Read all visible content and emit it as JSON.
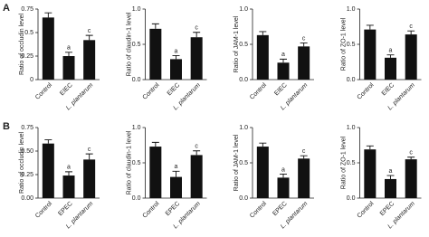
{
  "panel_labels": [
    "A",
    "B"
  ],
  "chart_data": [
    {
      "type": "bar",
      "ylabel": "Ratio of occludin level",
      "categories": [
        "Control",
        "EIEC",
        "L. plantarum"
      ],
      "values": [
        0.66,
        0.25,
        0.42
      ],
      "errors": [
        0.05,
        0.04,
        0.05
      ],
      "annotations": [
        null,
        "a",
        "c"
      ],
      "ylim": [
        0,
        0.75
      ],
      "yticks": [
        0,
        0.25,
        0.5,
        0.75
      ],
      "color": "#111111"
    },
    {
      "type": "bar",
      "ylabel": "Ratio of claudin-1 level",
      "categories": [
        "Control",
        "EIEC",
        "L. plantarum"
      ],
      "values": [
        0.72,
        0.29,
        0.6
      ],
      "errors": [
        0.07,
        0.05,
        0.07
      ],
      "annotations": [
        null,
        "a",
        "c"
      ],
      "ylim": [
        0,
        1
      ],
      "yticks": [
        {
          "value": 0,
          "label": "0.0"
        },
        0.5,
        {
          "value": 1,
          "label": "1.0"
        }
      ],
      "color": "#111111"
    },
    {
      "type": "bar",
      "ylabel": "Ratio of JAM-1 level",
      "categories": [
        "Control",
        "EIEC",
        "L. plantarum"
      ],
      "values": [
        0.63,
        0.24,
        0.47
      ],
      "errors": [
        0.05,
        0.05,
        0.05
      ],
      "annotations": [
        null,
        "a",
        "c"
      ],
      "ylim": [
        0,
        1
      ],
      "yticks": [
        {
          "value": 0,
          "label": "0.0"
        },
        0.5,
        {
          "value": 1,
          "label": "1.0"
        }
      ],
      "color": "#111111"
    },
    {
      "type": "bar",
      "ylabel": "Ratio of ZO-1 level",
      "categories": [
        "Control",
        "EIEC",
        "L. plantarum"
      ],
      "values": [
        0.71,
        0.31,
        0.64
      ],
      "errors": [
        0.06,
        0.04,
        0.05
      ],
      "annotations": [
        null,
        "a",
        "c"
      ],
      "ylim": [
        0,
        1
      ],
      "yticks": [
        {
          "value": 0,
          "label": "0.0"
        },
        0.5,
        {
          "value": 1,
          "label": "1.0"
        }
      ],
      "color": "#111111"
    },
    {
      "type": "bar",
      "ylabel": "Ratio of occludin level",
      "categories": [
        "Control",
        "EPEC",
        "L. plantarum"
      ],
      "values": [
        0.58,
        0.24,
        0.41
      ],
      "errors": [
        0.04,
        0.04,
        0.06
      ],
      "annotations": [
        null,
        "a",
        "c"
      ],
      "ylim": [
        0,
        0.75
      ],
      "yticks": [
        {
          "value": 0,
          "label": "0.00"
        },
        0.25,
        {
          "value": 0.5,
          "label": "0.50"
        },
        0.75
      ],
      "color": "#111111"
    },
    {
      "type": "bar",
      "ylabel": "Ratio of claudin-1 level",
      "categories": [
        "Control",
        "EPEC",
        "L. plantarum"
      ],
      "values": [
        0.73,
        0.3,
        0.61
      ],
      "errors": [
        0.06,
        0.08,
        0.06
      ],
      "annotations": [
        null,
        "a",
        "c"
      ],
      "ylim": [
        0,
        1
      ],
      "yticks": [
        {
          "value": 0,
          "label": "0.0"
        },
        0.5,
        {
          "value": 1,
          "label": "1.0"
        }
      ],
      "color": "#111111"
    },
    {
      "type": "bar",
      "ylabel": "Ratio of JAM-1 level",
      "categories": [
        "Control",
        "EPEC",
        "L. plantarum"
      ],
      "values": [
        0.73,
        0.29,
        0.56
      ],
      "errors": [
        0.05,
        0.05,
        0.04
      ],
      "annotations": [
        null,
        "a",
        "c"
      ],
      "ylim": [
        0,
        1
      ],
      "yticks": [
        {
          "value": 0,
          "label": "0.0"
        },
        0.5,
        {
          "value": 1,
          "label": "1.0"
        }
      ],
      "color": "#111111"
    },
    {
      "type": "bar",
      "ylabel": "Ratio of ZO-1 level",
      "categories": [
        "Control",
        "EPEC",
        "L. plantarum"
      ],
      "values": [
        0.69,
        0.27,
        0.55
      ],
      "errors": [
        0.05,
        0.05,
        0.03
      ],
      "annotations": [
        null,
        "a",
        "c"
      ],
      "ylim": [
        0,
        1
      ],
      "yticks": [
        {
          "value": 0,
          "label": "0.0"
        },
        0.5,
        {
          "value": 1,
          "label": "1.0"
        }
      ],
      "color": "#111111"
    }
  ]
}
